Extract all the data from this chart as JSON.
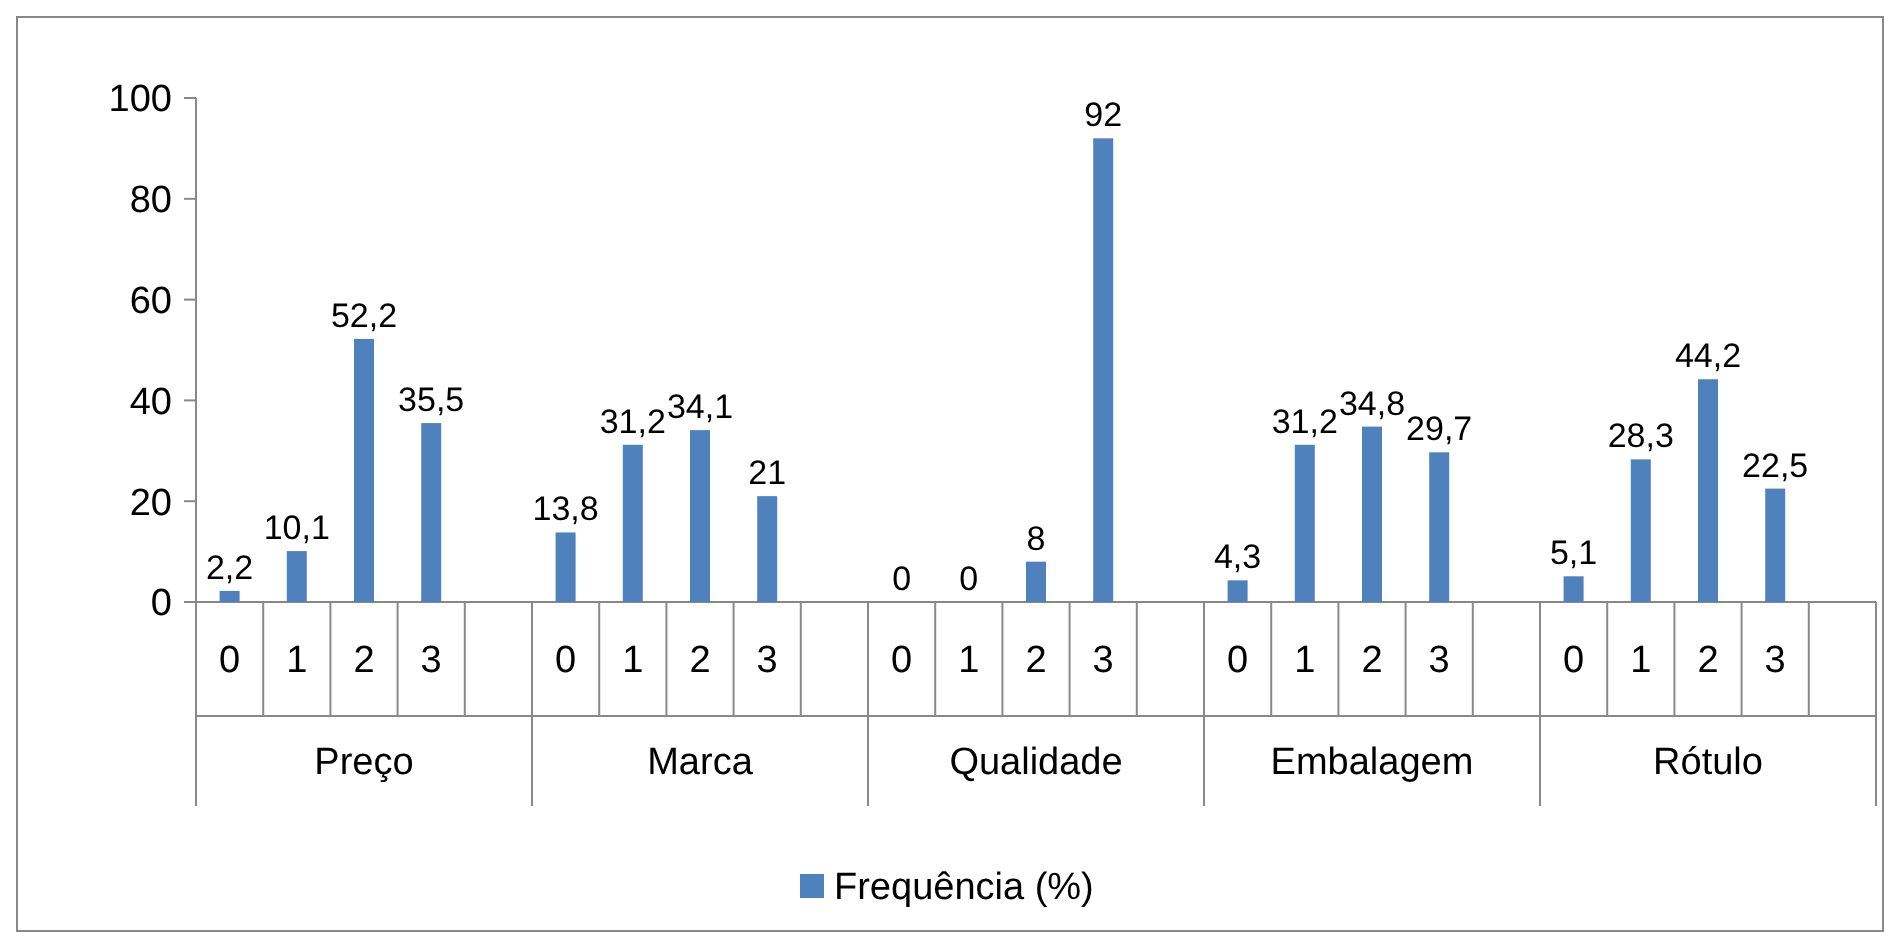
{
  "chart_data": {
    "type": "bar",
    "categories": [
      "0",
      "1",
      "2",
      "3",
      null,
      "0",
      "1",
      "2",
      "3",
      null,
      "0",
      "1",
      "2",
      "3",
      null,
      "0",
      "1",
      "2",
      "3",
      null,
      "0",
      "1",
      "2",
      "3",
      null
    ],
    "series": [
      {
        "name": "Frequência (%)",
        "color": "#4f81bd",
        "values": [
          2.2,
          10.1,
          52.2,
          35.5,
          null,
          13.8,
          31.2,
          34.1,
          21,
          null,
          0,
          0,
          8,
          92,
          null,
          4.3,
          31.2,
          34.8,
          29.7,
          null,
          5.1,
          28.3,
          44.2,
          22.5,
          null
        ],
        "value_labels": [
          "2,2",
          "10,1",
          "52,2",
          "35,5",
          null,
          "13,8",
          "31,2",
          "34,1",
          "21",
          null,
          "0",
          "0",
          "8",
          "92",
          null,
          "4,3",
          "31,2",
          "34,8",
          "29,7",
          null,
          "5,1",
          "28,3",
          "44,2",
          "22,5",
          null
        ]
      }
    ],
    "annotations": [
      "Preço",
      "Marca",
      "Qualidade",
      "Embalagem",
      "Rótulo"
    ],
    "ylim": [
      0,
      100
    ],
    "yticks": [
      0,
      20,
      40,
      60,
      80,
      100
    ],
    "legend": "bottom"
  }
}
